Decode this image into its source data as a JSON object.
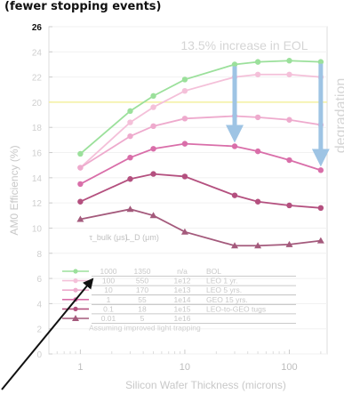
{
  "header": {
    "title": "(fewer stopping events)"
  },
  "chart_data": {
    "type": "line",
    "title": "",
    "xlabel": "Silicon Wafer Thickness (microns)",
    "ylabel": "AM0 Efficiency (%)",
    "xscale": "log",
    "xlim": [
      0.5,
      230
    ],
    "ylim": [
      0,
      26
    ],
    "x_ticks": [
      1,
      10,
      100
    ],
    "x_tick_labels": [
      "1",
      "10",
      "100"
    ],
    "y_ticks": [
      0,
      2,
      4,
      6,
      8,
      10,
      12,
      14,
      16,
      18,
      20,
      22,
      24,
      26
    ],
    "y_tick_labels": [
      "0",
      "2",
      "4",
      "6",
      "8",
      "10",
      "12",
      "14",
      "16",
      "18",
      "20",
      "22",
      "24",
      "26"
    ],
    "grid": true,
    "legend_position": "bottom-center",
    "legend_header": [
      "τ_bulk (μs)",
      "L_D (μm)"
    ],
    "x": [
      1,
      3,
      5,
      10,
      30,
      50,
      100,
      200
    ],
    "series": [
      {
        "name": "BOL",
        "tau_bulk": "1000",
        "ld": "1350",
        "fluence": "n/a",
        "color": "#9be09b",
        "marker": "circle",
        "values": [
          15.9,
          19.3,
          20.5,
          21.8,
          23.0,
          23.2,
          23.3,
          23.2
        ]
      },
      {
        "name": "LEO 1 yr.",
        "tau_bulk": "100",
        "ld": "550",
        "fluence": "1e12",
        "color": "#f4c0d9",
        "marker": "circle",
        "values": [
          14.8,
          18.4,
          19.6,
          20.9,
          22.0,
          22.2,
          22.2,
          22.0
        ]
      },
      {
        "name": "LEO 5 yrs.",
        "tau_bulk": "10",
        "ld": "170",
        "fluence": "1e13",
        "color": "#eeaacd",
        "marker": "circle",
        "values": [
          14.8,
          17.3,
          18.1,
          18.7,
          18.9,
          18.8,
          18.6,
          18.2
        ]
      },
      {
        "name": "GEO 15 yrs.",
        "tau_bulk": "1",
        "ld": "55",
        "fluence": "1e14",
        "color": "#d96ea9",
        "marker": "circle",
        "values": [
          13.5,
          15.6,
          16.3,
          16.7,
          16.5,
          16.1,
          15.4,
          14.6
        ]
      },
      {
        "name": "LEO-to-GEO tugs",
        "tau_bulk": "0.1",
        "ld": "18",
        "fluence": "1e15",
        "color": "#b4507f",
        "marker": "circle",
        "values": [
          12.1,
          13.9,
          14.3,
          14.1,
          12.6,
          12.1,
          11.8,
          11.6
        ]
      },
      {
        "name": "",
        "tau_bulk": "0.01",
        "ld": "5",
        "fluence": "1e16",
        "color": "#a45a7c",
        "marker": "triangle",
        "values": [
          10.7,
          11.5,
          11.0,
          9.7,
          8.6,
          8.6,
          8.7,
          9.0
        ]
      }
    ],
    "reference_line": {
      "y": 20,
      "color": "#f4f0a0"
    },
    "annotations": {
      "increase_text": "13.5% increase in EOL",
      "degradation_text": "degradation",
      "footnote": "Assuming improved light trapping",
      "arrows": [
        {
          "x": 30,
          "from": 23.0,
          "to": 16.5,
          "color": "#9ec4e4"
        },
        {
          "x": 200,
          "from": 23.2,
          "to": 14.6,
          "color": "#9ec4e4"
        }
      ]
    }
  }
}
